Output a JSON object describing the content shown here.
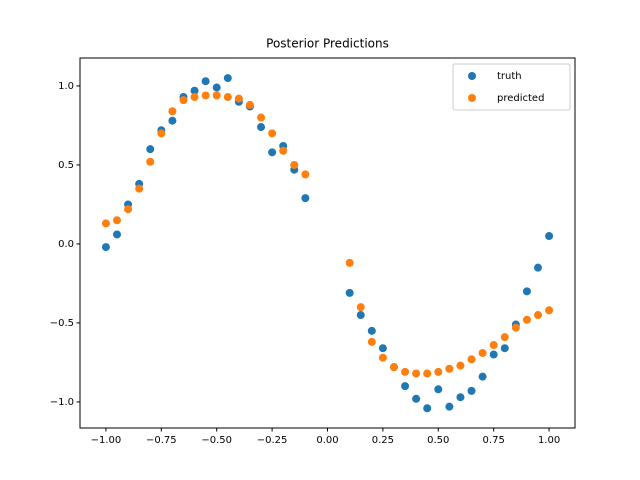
{
  "chart_data": {
    "type": "scatter",
    "title": "Posterior Predictions",
    "x": [
      -1,
      -0.95,
      -0.9,
      -0.85,
      -0.8,
      -0.75,
      -0.7,
      -0.65,
      -0.6,
      -0.55,
      -0.5,
      -0.45,
      -0.4,
      -0.35,
      -0.3,
      -0.25,
      -0.2,
      -0.15,
      -0.1,
      0.1,
      0.15,
      0.2,
      0.25,
      0.3,
      0.35,
      0.4,
      0.45,
      0.5,
      0.55,
      0.6,
      0.65,
      0.7,
      0.75,
      0.8,
      0.85,
      0.9,
      0.95,
      1.0
    ],
    "series": [
      {
        "name": "truth",
        "color": "#1f77b4",
        "values": [
          -0.02,
          0.06,
          0.25,
          0.38,
          0.6,
          0.72,
          0.78,
          0.93,
          0.97,
          1.03,
          0.99,
          1.05,
          0.9,
          0.87,
          0.74,
          0.58,
          0.62,
          0.47,
          0.29,
          -0.31,
          -0.45,
          -0.55,
          -0.66,
          -0.78,
          -0.9,
          -0.98,
          -1.04,
          -0.92,
          -1.03,
          -0.97,
          -0.93,
          -0.84,
          -0.7,
          -0.66,
          -0.51,
          -0.3,
          -0.15,
          0.05
        ]
      },
      {
        "name": "predicted",
        "color": "#ff7f0e",
        "values": [
          0.13,
          0.15,
          0.22,
          0.35,
          0.52,
          0.7,
          0.84,
          0.91,
          0.93,
          0.94,
          0.94,
          0.93,
          0.92,
          0.88,
          0.8,
          0.7,
          0.59,
          0.5,
          0.44,
          -0.12,
          -0.4,
          -0.62,
          -0.72,
          -0.78,
          -0.81,
          -0.82,
          -0.82,
          -0.81,
          -0.79,
          -0.77,
          -0.73,
          -0.69,
          -0.64,
          -0.59,
          -0.53,
          -0.48,
          -0.45,
          -0.42
        ]
      }
    ],
    "xlim": [
      -1.117,
      1.117
    ],
    "ylim": [
      -1.165,
      1.177
    ],
    "xticks": [
      {
        "value": -1,
        "label": "−1.00"
      },
      {
        "value": -0.75,
        "label": "−0.75"
      },
      {
        "value": -0.5,
        "label": "−0.50"
      },
      {
        "value": -0.25,
        "label": "−0.25"
      },
      {
        "value": 0,
        "label": "0.00"
      },
      {
        "value": 0.25,
        "label": "0.25"
      },
      {
        "value": 0.5,
        "label": "0.50"
      },
      {
        "value": 0.75,
        "label": "0.75"
      },
      {
        "value": 1,
        "label": "1.00"
      }
    ],
    "yticks": [
      {
        "value": -1,
        "label": "−1.0"
      },
      {
        "value": -0.5,
        "label": "−0.5"
      },
      {
        "value": 0,
        "label": "0.0"
      },
      {
        "value": 0.5,
        "label": "0.5"
      },
      {
        "value": 1,
        "label": "1.0"
      }
    ],
    "legend": "upper right",
    "grid": false
  }
}
